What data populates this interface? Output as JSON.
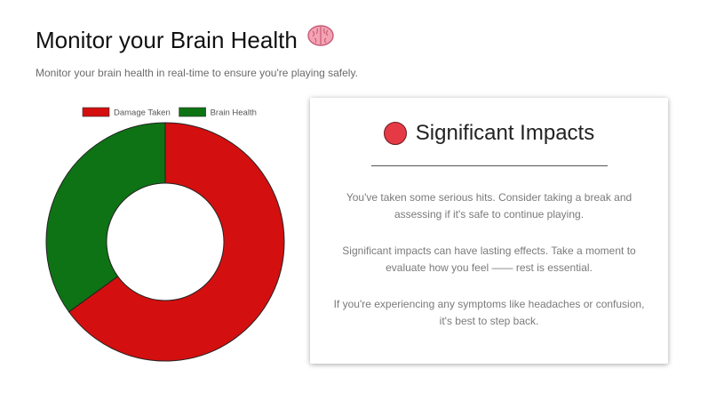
{
  "header": {
    "title": "Monitor your Brain Health",
    "title_emoji": "🧠",
    "subtitle": "Monitor your brain health in real-time to ensure you're playing safely."
  },
  "chart_data": {
    "type": "doughnut",
    "title": "",
    "categories": [
      "Damage Taken",
      "Brain Health"
    ],
    "values": [
      65,
      35
    ],
    "colors": [
      "#d40f0f",
      "#0e7314"
    ],
    "legend_position": "top"
  },
  "card": {
    "status_color": "#e63946",
    "heading": "Significant Impacts",
    "paragraph_1": "You've taken some serious hits. Consider taking a break and assessing if it's safe to continue playing.",
    "paragraph_2": "Significant impacts can have lasting effects. Take a moment to evaluate how you feel —— rest is essential.",
    "paragraph_3": "If you're experiencing any symptoms like headaches or confusion, it's best to step back."
  }
}
